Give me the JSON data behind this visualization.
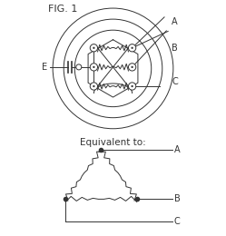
{
  "fig_label": "FIG. 1",
  "equiv_label": "Equivalent to:",
  "term_labels": [
    "A",
    "B",
    "C"
  ],
  "term_label_E": "E",
  "bg_color": "#ffffff",
  "line_color": "#333333",
  "font_size_fig": 8,
  "font_size_label": 7,
  "font_size_equiv": 7.5
}
